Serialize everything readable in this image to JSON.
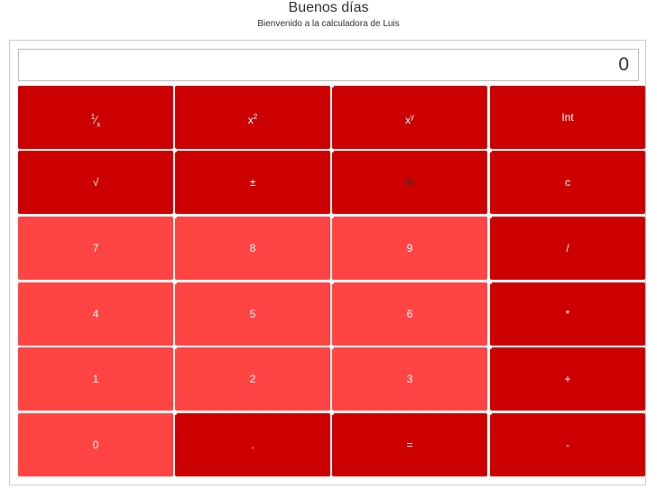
{
  "header": {
    "title": "Buenos días",
    "subtitle": "Bienvenido a la calculadora de Luis"
  },
  "display": {
    "value": "0"
  },
  "colors": {
    "dark": "#cc0000",
    "light": "#ff4444"
  },
  "keys": {
    "reciprocal": {
      "num": "1",
      "slash": "⁄",
      "den": "x"
    },
    "square": {
      "base": "x",
      "exp": "2"
    },
    "power": {
      "base": "x",
      "exp": "y"
    },
    "int": "Int",
    "sqrt": "√",
    "sign": "±",
    "percent": "%",
    "clear": "c",
    "seven": "7",
    "eight": "8",
    "nine": "9",
    "divide": "/",
    "four": "4",
    "five": "5",
    "six": "6",
    "multiply": "*",
    "one": "1",
    "two": "2",
    "three": "3",
    "add": "+",
    "zero": "0",
    "decimal": ".",
    "equals": "=",
    "subtract": "-"
  }
}
